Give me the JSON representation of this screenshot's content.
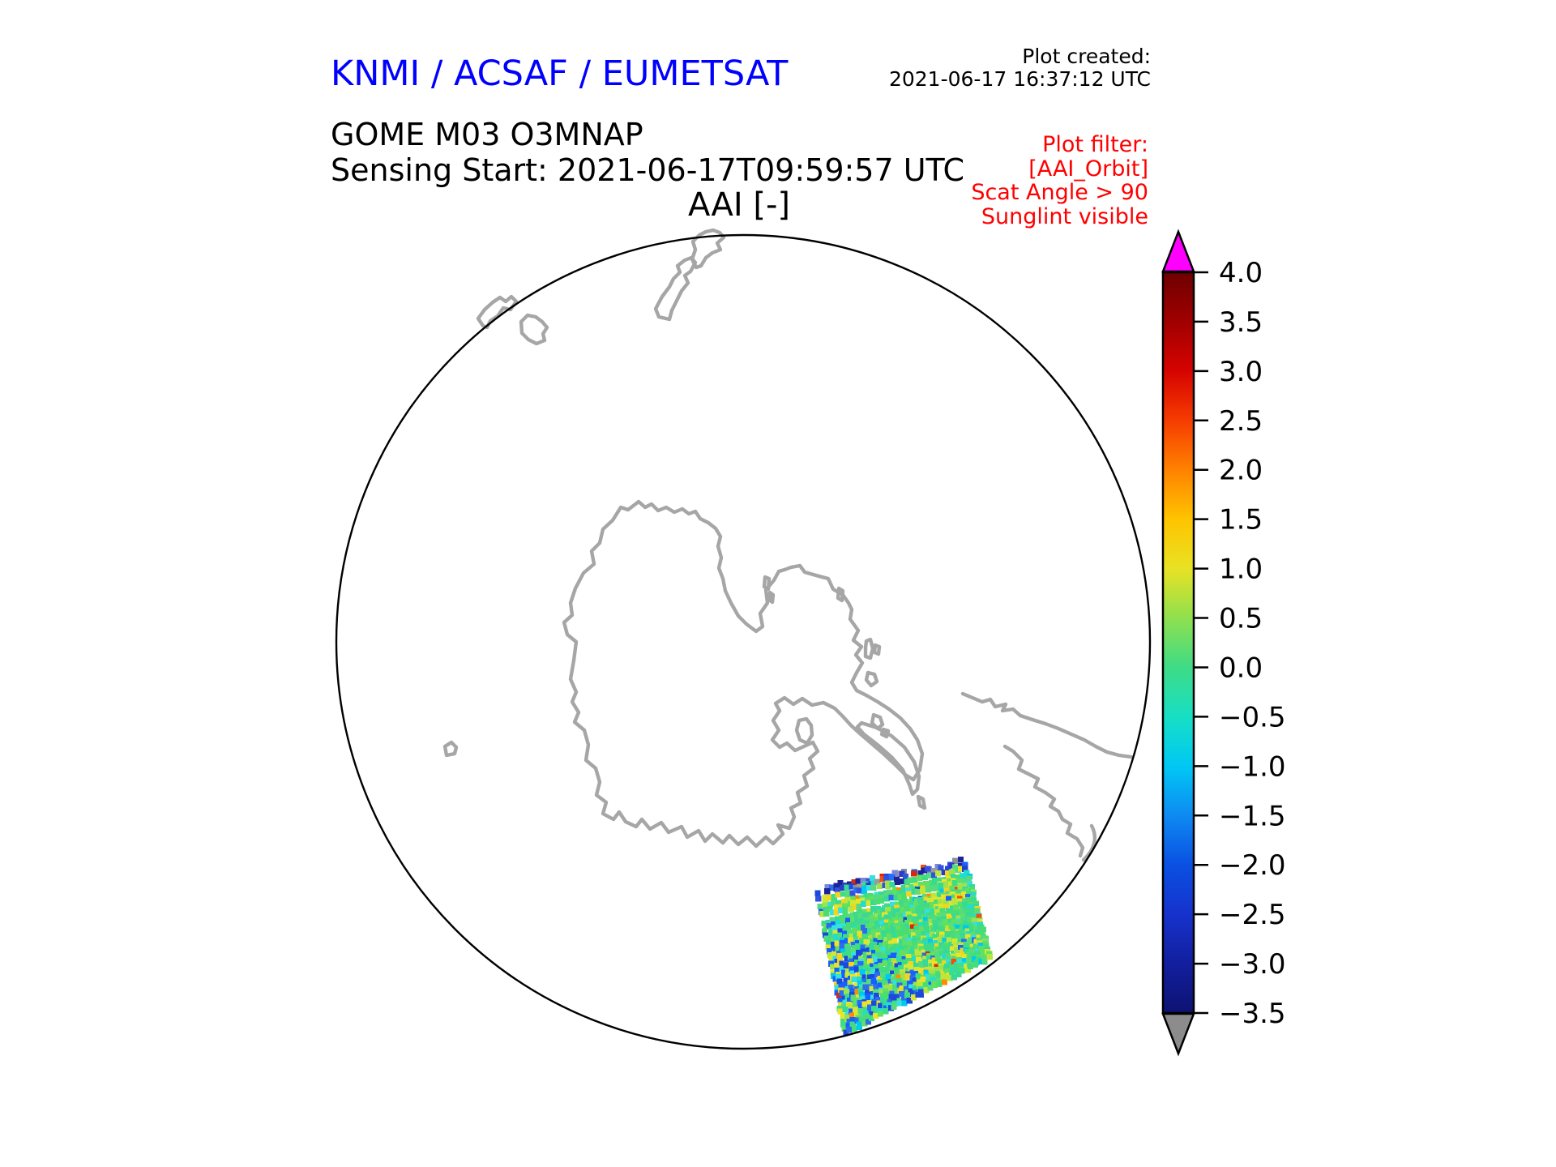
{
  "header": {
    "agency_title": "KNMI / ACSAF / EUMETSAT",
    "agency_color": "#0000ff",
    "product_name": "GOME M03 O3MNAP",
    "sensing_start": "Sensing Start: 2021-06-17T09:59:57 UTC",
    "plot_title": "AAI [-]",
    "created_label": "Plot created:",
    "created_timestamp": "2021-06-17 16:37:12 UTC"
  },
  "filter_note": {
    "color": "#ff0000",
    "lines": [
      "Plot filter:",
      "[AAI_Orbit]",
      "Scat Angle > 90",
      "Sunglint visible"
    ]
  },
  "map": {
    "projection_shape": "south-polar-disc",
    "outline_color": "#000000",
    "coastline_color": "#a6a6a6",
    "background": "#ffffff"
  },
  "colorbar": {
    "over_color": "#ff00ff",
    "under_color": "#8c8c8c",
    "scale": [
      {
        "value": "4.0",
        "color": "#6e0000"
      },
      {
        "value": "3.5",
        "color": "#a00000"
      },
      {
        "value": "3.0",
        "color": "#d60300"
      },
      {
        "value": "2.5",
        "color": "#f63c00"
      },
      {
        "value": "2.0",
        "color": "#ff8200"
      },
      {
        "value": "1.5",
        "color": "#ffc400"
      },
      {
        "value": "1.0",
        "color": "#e8e224"
      },
      {
        "value": "0.5",
        "color": "#8fe04e"
      },
      {
        "value": "0.0",
        "color": "#3edc86"
      },
      {
        "value": "−0.5",
        "color": "#17dfc4"
      },
      {
        "value": "−1.0",
        "color": "#00c8f4"
      },
      {
        "value": "−1.5",
        "color": "#0e8af2"
      },
      {
        "value": "−2.0",
        "color": "#0a50e2"
      },
      {
        "value": "−2.5",
        "color": "#1632cc"
      },
      {
        "value": "−3.0",
        "color": "#121f9e"
      },
      {
        "value": "−3.5",
        "color": "#0d1272"
      }
    ]
  },
  "swath": {
    "palette": {
      "base_greens": [
        "#3edc86",
        "#4ade72",
        "#62e060",
        "#38d996",
        "#55dd7d"
      ],
      "yellow_greens": [
        "#9fe24b",
        "#bce63c",
        "#d4e832"
      ],
      "yellows": [
        "#e9e428",
        "#f2d51f"
      ],
      "cyans": [
        "#21dccf",
        "#00c9f0",
        "#35e0e0"
      ],
      "blues": [
        "#2b6cf0",
        "#1a49dc",
        "#1560ff"
      ],
      "dark_blues": [
        "#1c2396",
        "#2a3bc8",
        "#3350e0"
      ],
      "periwinkle": "#7d86d8",
      "grays": [
        "#9a9a9a",
        "#8a8f9a"
      ],
      "hot": [
        "#ff8c00",
        "#f0500e",
        "#e02800"
      ],
      "gap": "#ffffff"
    }
  }
}
